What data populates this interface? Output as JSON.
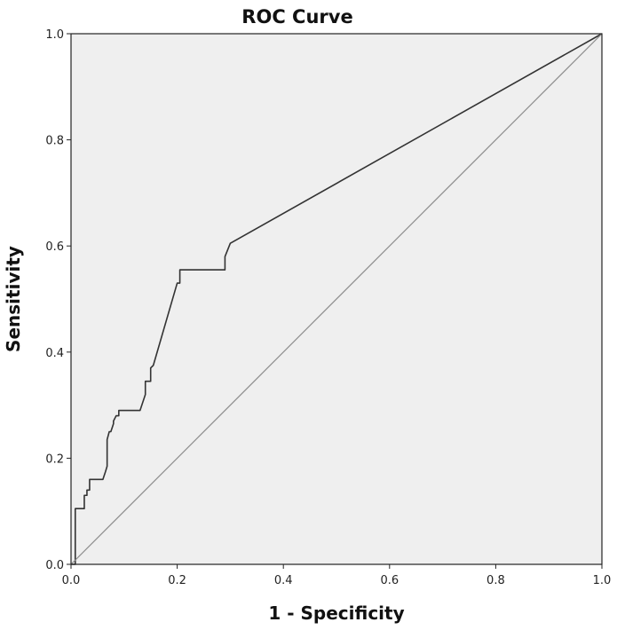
{
  "chart_data": {
    "type": "line",
    "title": "ROC Curve",
    "xlabel": "1 - Specificity",
    "ylabel": "Sensitivity",
    "xlim": [
      0.0,
      1.0
    ],
    "ylim": [
      0.0,
      1.0
    ],
    "x_ticks": [
      "0.0",
      "0.2",
      "0.4",
      "0.6",
      "0.8",
      "1.0"
    ],
    "y_ticks": [
      "0.0",
      "0.2",
      "0.4",
      "0.6",
      "0.8",
      "1.0"
    ],
    "grid": false,
    "plot_background": "#efefef",
    "series": [
      {
        "color": "#333333",
        "x": [
          0.0,
          0.008,
          0.008,
          0.025,
          0.025,
          0.03,
          0.03,
          0.035,
          0.035,
          0.06,
          0.065,
          0.068,
          0.068,
          0.072,
          0.075,
          0.08,
          0.08,
          0.085,
          0.09,
          0.09,
          0.13,
          0.14,
          0.14,
          0.15,
          0.15,
          0.155,
          0.2,
          0.205,
          0.205,
          0.29,
          0.29,
          0.3,
          1.0
        ],
        "y": [
          0.0,
          0.0,
          0.105,
          0.105,
          0.13,
          0.13,
          0.14,
          0.14,
          0.16,
          0.16,
          0.175,
          0.185,
          0.235,
          0.25,
          0.25,
          0.265,
          0.27,
          0.28,
          0.28,
          0.29,
          0.29,
          0.32,
          0.345,
          0.345,
          0.37,
          0.375,
          0.53,
          0.53,
          0.555,
          0.555,
          0.58,
          0.605,
          1.0
        ]
      },
      {
        "color": "#8c8c8c",
        "x": [
          0.0,
          1.0
        ],
        "y": [
          0.0,
          1.0
        ]
      }
    ]
  }
}
